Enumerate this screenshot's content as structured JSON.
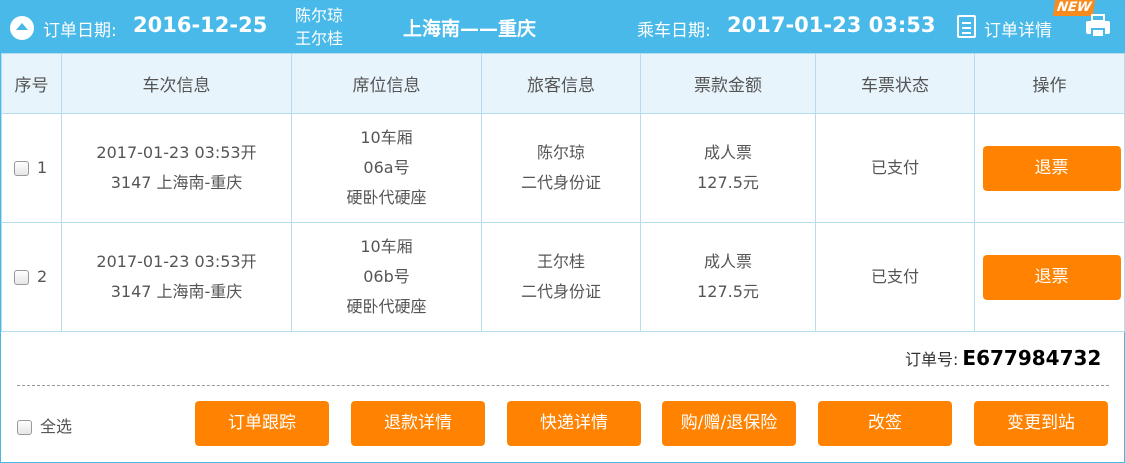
{
  "header": {
    "order_date_label": "订单日期:",
    "order_date": "2016-12-25",
    "passenger_names": [
      "陈尔琼",
      "王尔桂"
    ],
    "route": "上海南——重庆",
    "ride_date_label": "乘车日期:",
    "ride_date": "2017-01-23 03:53",
    "detail_label": "订单详情",
    "new_badge": "NEW"
  },
  "table": {
    "columns": [
      "序号",
      "车次信息",
      "席位信息",
      "旅客信息",
      "票款金额",
      "车票状态",
      "操作"
    ],
    "rows": [
      {
        "seq": "1",
        "train_time": "2017-01-23 03:53开",
        "train_route": "3147 上海南-重庆",
        "car": "10车厢",
        "seat": "06a号",
        "seat_type": "硬卧代硬座",
        "passenger": "陈尔琼",
        "id_type": "二代身份证",
        "ticket_type": "成人票",
        "price": "127.5元",
        "status": "已支付",
        "action": "退票"
      },
      {
        "seq": "2",
        "train_time": "2017-01-23 03:53开",
        "train_route": "3147 上海南-重庆",
        "car": "10车厢",
        "seat": "06b号",
        "seat_type": "硬卧代硬座",
        "passenger": "王尔桂",
        "id_type": "二代身份证",
        "ticket_type": "成人票",
        "price": "127.5元",
        "status": "已支付",
        "action": "退票"
      }
    ]
  },
  "footer": {
    "order_no_label": "订单号:",
    "order_no": "E677984732",
    "select_all": "全选",
    "buttons": [
      "订单跟踪",
      "退款详情",
      "快递详情",
      "购/赠/退保险",
      "改签",
      "变更到站"
    ]
  },
  "colors": {
    "header_bg": "#48b9e8",
    "button": "#ff8200",
    "table_head_bg": "#e8f4fc"
  }
}
